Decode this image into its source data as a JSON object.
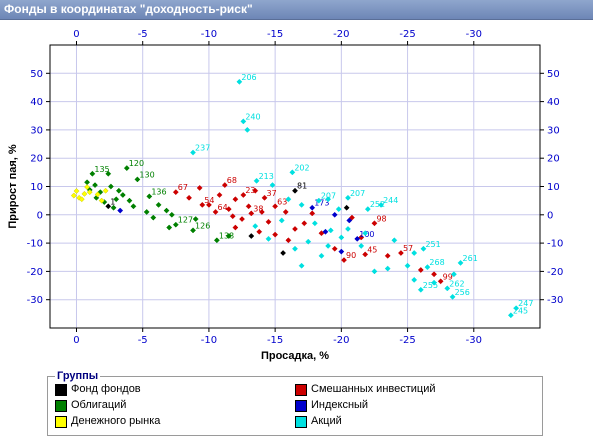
{
  "window": {
    "title": "Фонды в координатах \"доходность-риск\""
  },
  "chart_data": {
    "type": "scatter",
    "title": "",
    "xlabel": "Просадка, %",
    "ylabel": "Прирост пая, %",
    "xlim": [
      2,
      -35
    ],
    "ylim": [
      -40,
      60
    ],
    "x_ticks": [
      "0",
      "-5",
      "-10",
      "-15",
      "-20",
      "-25",
      "-30"
    ],
    "x_tick_values": [
      0,
      -5,
      -10,
      -15,
      -20,
      -25,
      -30
    ],
    "y_ticks": [
      "50",
      "40",
      "30",
      "20",
      "10",
      "0",
      "-10",
      "-20",
      "-30"
    ],
    "y_tick_values": [
      50,
      40,
      30,
      20,
      10,
      0,
      -10,
      -20,
      -30
    ],
    "grid": true,
    "series": [
      {
        "name": "Фонд фондов",
        "color": "#000000",
        "points": [
          {
            "x": -2.4,
            "y": 3,
            "label": "1"
          },
          {
            "x": -15.6,
            "y": -13.5,
            "label": ""
          },
          {
            "x": -16.5,
            "y": 8.5,
            "label": "81"
          },
          {
            "x": -13.2,
            "y": -7.5,
            "label": ""
          },
          {
            "x": -20.4,
            "y": 2.5,
            "label": ""
          }
        ]
      },
      {
        "name": "Облигаций",
        "color": "#008000",
        "points": [
          {
            "x": -1.2,
            "y": 14.5,
            "label": "135"
          },
          {
            "x": -2.4,
            "y": 14.5,
            "label": ""
          },
          {
            "x": -3.8,
            "y": 16.5,
            "label": "120"
          },
          {
            "x": -4.6,
            "y": 12.5,
            "label": "130"
          },
          {
            "x": -1.4,
            "y": 10.5,
            "label": ""
          },
          {
            "x": -1.8,
            "y": 8.0,
            "label": ""
          },
          {
            "x": -2.6,
            "y": 10.0,
            "label": ""
          },
          {
            "x": -3.2,
            "y": 8.5,
            "label": ""
          },
          {
            "x": -0.8,
            "y": 11.5,
            "label": ""
          },
          {
            "x": -1.5,
            "y": 6.0,
            "label": ""
          },
          {
            "x": -2.1,
            "y": 4.5,
            "label": ""
          },
          {
            "x": -3.0,
            "y": 5.5,
            "label": ""
          },
          {
            "x": -3.5,
            "y": 7.0,
            "label": ""
          },
          {
            "x": -4.0,
            "y": 5.0,
            "label": ""
          },
          {
            "x": -4.3,
            "y": 3.0,
            "label": ""
          },
          {
            "x": -5.5,
            "y": 6.5,
            "label": "136"
          },
          {
            "x": -6.2,
            "y": 3.5,
            "label": ""
          },
          {
            "x": -6.8,
            "y": 1.5,
            "label": ""
          },
          {
            "x": -5.3,
            "y": 1.0,
            "label": ""
          },
          {
            "x": -7.2,
            "y": 0.0,
            "label": ""
          },
          {
            "x": -7.5,
            "y": -3.5,
            "label": "127"
          },
          {
            "x": -7.0,
            "y": -4.5,
            "label": ""
          },
          {
            "x": -8.8,
            "y": -5.5,
            "label": "126"
          },
          {
            "x": -10.6,
            "y": -9.0,
            "label": "138"
          },
          {
            "x": -11.5,
            "y": -7.5,
            "label": ""
          },
          {
            "x": -9.0,
            "y": -1.5,
            "label": ""
          },
          {
            "x": -1.0,
            "y": 8.8,
            "label": ""
          },
          {
            "x": -2.8,
            "y": 2.5,
            "label": ""
          },
          {
            "x": -5.8,
            "y": -1.0,
            "label": ""
          }
        ]
      },
      {
        "name": "Денежного рынка",
        "color": "#ffff00",
        "points": [
          {
            "x": 0.2,
            "y": 6.8,
            "label": ""
          },
          {
            "x": -0.2,
            "y": 6.0,
            "label": ""
          },
          {
            "x": -0.6,
            "y": 7.4,
            "label": ""
          },
          {
            "x": -1.0,
            "y": 8.0,
            "label": ""
          },
          {
            "x": -0.4,
            "y": 5.5,
            "label": ""
          },
          {
            "x": -1.6,
            "y": 7.2,
            "label": ""
          },
          {
            "x": -2.2,
            "y": 8.5,
            "label": ""
          },
          {
            "x": 0.0,
            "y": 8.4,
            "label": ""
          },
          {
            "x": -0.8,
            "y": 9.8,
            "label": ""
          },
          {
            "x": -1.9,
            "y": 5.0,
            "label": ""
          }
        ]
      },
      {
        "name": "Смешанных инвестиций",
        "color": "#cc0000",
        "points": [
          {
            "x": -7.5,
            "y": 8.0,
            "label": "67"
          },
          {
            "x": -9.3,
            "y": 9.5,
            "label": ""
          },
          {
            "x": -11.2,
            "y": 10.5,
            "label": "68"
          },
          {
            "x": -10.8,
            "y": 7.0,
            "label": ""
          },
          {
            "x": -12.0,
            "y": 5.5,
            "label": ""
          },
          {
            "x": -12.6,
            "y": 7.0,
            "label": "23"
          },
          {
            "x": -13.5,
            "y": 8.5,
            "label": ""
          },
          {
            "x": -14.2,
            "y": 6.0,
            "label": "37"
          },
          {
            "x": -13.0,
            "y": 3.0,
            "label": ""
          },
          {
            "x": -11.5,
            "y": 2.0,
            "label": ""
          },
          {
            "x": -10.5,
            "y": 1.0,
            "label": "64"
          },
          {
            "x": -9.5,
            "y": 3.5,
            "label": "54"
          },
          {
            "x": -14.0,
            "y": 1.0,
            "label": ""
          },
          {
            "x": -15.0,
            "y": 3.0,
            "label": "63"
          },
          {
            "x": -15.8,
            "y": 1.0,
            "label": ""
          },
          {
            "x": -13.2,
            "y": 0.5,
            "label": "38"
          },
          {
            "x": -12.5,
            "y": -1.5,
            "label": ""
          },
          {
            "x": -14.5,
            "y": -2.5,
            "label": ""
          },
          {
            "x": -12.0,
            "y": -4.5,
            "label": ""
          },
          {
            "x": -13.8,
            "y": -6.0,
            "label": ""
          },
          {
            "x": -15.0,
            "y": -7.0,
            "label": ""
          },
          {
            "x": -16.5,
            "y": -5.0,
            "label": ""
          },
          {
            "x": -16.0,
            "y": -9.0,
            "label": ""
          },
          {
            "x": -17.2,
            "y": -3.0,
            "label": ""
          },
          {
            "x": -17.8,
            "y": 0.5,
            "label": ""
          },
          {
            "x": -19.5,
            "y": -12.0,
            "label": ""
          },
          {
            "x": -20.2,
            "y": -16.0,
            "label": "90"
          },
          {
            "x": -21.5,
            "y": -8.0,
            "label": ""
          },
          {
            "x": -22.5,
            "y": -3.0,
            "label": "98"
          },
          {
            "x": -21.8,
            "y": -14.0,
            "label": "45"
          },
          {
            "x": -23.5,
            "y": -14.5,
            "label": ""
          },
          {
            "x": -24.5,
            "y": -13.5,
            "label": "57"
          },
          {
            "x": -27.5,
            "y": -23.5,
            "label": "99"
          },
          {
            "x": -27.0,
            "y": -21.0,
            "label": ""
          },
          {
            "x": -26.0,
            "y": -19.5,
            "label": ""
          },
          {
            "x": -8.5,
            "y": 6.0,
            "label": ""
          },
          {
            "x": -10.0,
            "y": 3.5,
            "label": ""
          },
          {
            "x": -11.8,
            "y": -0.5,
            "label": ""
          },
          {
            "x": -18.5,
            "y": -6.5,
            "label": ""
          },
          {
            "x": -20.8,
            "y": -1.0,
            "label": ""
          }
        ]
      },
      {
        "name": "Индексный",
        "color": "#0000cc",
        "points": [
          {
            "x": -17.8,
            "y": 2.5,
            "label": "173"
          },
          {
            "x": -19.5,
            "y": 0.0,
            "label": ""
          },
          {
            "x": -20.6,
            "y": -2.0,
            "label": ""
          },
          {
            "x": -21.2,
            "y": -8.5,
            "label": "100"
          },
          {
            "x": -20.0,
            "y": -13.0,
            "label": ""
          },
          {
            "x": -18.8,
            "y": -6.0,
            "label": ""
          },
          {
            "x": -3.3,
            "y": 1.5,
            "label": ""
          }
        ]
      },
      {
        "name": "Акций",
        "color": "#00e0e0",
        "points": [
          {
            "x": -12.3,
            "y": 47.0,
            "label": "206"
          },
          {
            "x": -12.6,
            "y": 33.0,
            "label": "240"
          },
          {
            "x": -12.9,
            "y": 30.0,
            "label": ""
          },
          {
            "x": -8.8,
            "y": 22.0,
            "label": "237"
          },
          {
            "x": -16.3,
            "y": 15.0,
            "label": "202"
          },
          {
            "x": -13.6,
            "y": 12.0,
            "label": "213"
          },
          {
            "x": -14.8,
            "y": 10.5,
            "label": ""
          },
          {
            "x": -16.0,
            "y": 5.5,
            "label": ""
          },
          {
            "x": -17.0,
            "y": 3.5,
            "label": ""
          },
          {
            "x": -18.3,
            "y": 5.0,
            "label": "207"
          },
          {
            "x": -19.0,
            "y": 5.5,
            "label": ""
          },
          {
            "x": -20.5,
            "y": 6.0,
            "label": "207"
          },
          {
            "x": -22.0,
            "y": 2.0,
            "label": "252"
          },
          {
            "x": -23.0,
            "y": 3.5,
            "label": "244"
          },
          {
            "x": -18.0,
            "y": -3.0,
            "label": ""
          },
          {
            "x": -19.2,
            "y": -5.5,
            "label": ""
          },
          {
            "x": -20.0,
            "y": -8.0,
            "label": ""
          },
          {
            "x": -17.5,
            "y": -9.5,
            "label": ""
          },
          {
            "x": -16.5,
            "y": -12.0,
            "label": ""
          },
          {
            "x": -18.5,
            "y": -14.5,
            "label": ""
          },
          {
            "x": -17.0,
            "y": -18.0,
            "label": ""
          },
          {
            "x": -21.5,
            "y": -11.0,
            "label": ""
          },
          {
            "x": -22.5,
            "y": -20.0,
            "label": ""
          },
          {
            "x": -23.5,
            "y": -19.0,
            "label": ""
          },
          {
            "x": -25.0,
            "y": -18.0,
            "label": ""
          },
          {
            "x": -25.5,
            "y": -13.5,
            "label": ""
          },
          {
            "x": -26.2,
            "y": -12.0,
            "label": "251"
          },
          {
            "x": -26.5,
            "y": -18.5,
            "label": "268"
          },
          {
            "x": -25.5,
            "y": -23.0,
            "label": ""
          },
          {
            "x": -26.0,
            "y": -26.5,
            "label": "255"
          },
          {
            "x": -27.0,
            "y": -24.0,
            "label": ""
          },
          {
            "x": -28.5,
            "y": -21.0,
            "label": ""
          },
          {
            "x": -29.0,
            "y": -17.0,
            "label": "261"
          },
          {
            "x": -28.0,
            "y": -26.0,
            "label": "262"
          },
          {
            "x": -28.4,
            "y": -29.0,
            "label": "256"
          },
          {
            "x": -33.2,
            "y": -33.0,
            "label": "247"
          },
          {
            "x": -32.8,
            "y": -35.5,
            "label": "245"
          },
          {
            "x": -13.5,
            "y": -4.0,
            "label": ""
          },
          {
            "x": -14.5,
            "y": -8.5,
            "label": ""
          },
          {
            "x": -15.5,
            "y": -2.0,
            "label": ""
          },
          {
            "x": -20.5,
            "y": -5.0,
            "label": ""
          },
          {
            "x": -21.8,
            "y": -6.5,
            "label": ""
          },
          {
            "x": -19.8,
            "y": 2.0,
            "label": ""
          },
          {
            "x": -24.0,
            "y": -9.0,
            "label": ""
          },
          {
            "x": -19.0,
            "y": -11.0,
            "label": ""
          }
        ]
      }
    ]
  },
  "legend": {
    "title": "Группы",
    "items": [
      {
        "label": "Фонд фондов",
        "color": "#000000"
      },
      {
        "label": "Облигаций",
        "color": "#008000"
      },
      {
        "label": "Денежного рынка",
        "color": "#ffff00"
      },
      {
        "label": "Смешанных инвестиций",
        "color": "#cc0000"
      },
      {
        "label": "Индексный",
        "color": "#0000cc"
      },
      {
        "label": "Акций",
        "color": "#00e0e0"
      }
    ]
  }
}
